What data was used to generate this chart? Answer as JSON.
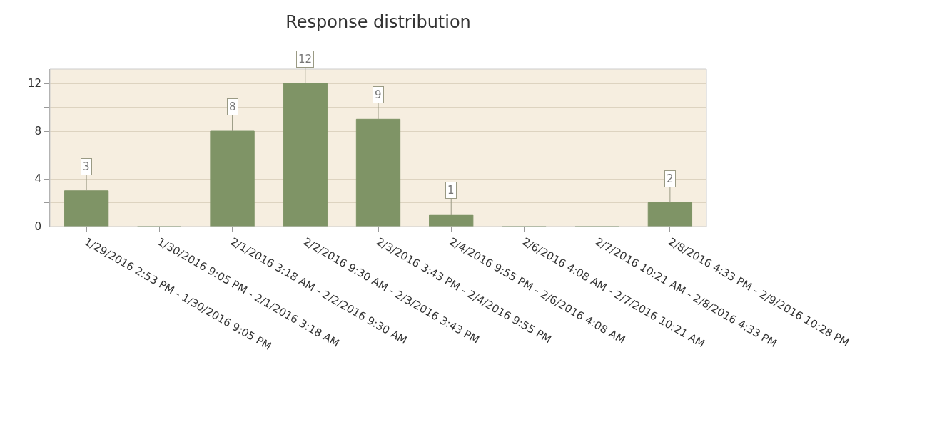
{
  "chart_data": {
    "type": "bar",
    "title": "Response distribution",
    "categories": [
      "1/29/2016 2:53 PM - 1/30/2016 9:05 PM",
      "1/30/2016 9:05 PM - 2/1/2016 3:18 AM",
      "2/1/2016 3:18 AM - 2/2/2016 9:30 AM",
      "2/2/2016 9:30 AM - 2/3/2016 3:43 PM",
      "2/3/2016 3:43 PM - 2/4/2016 9:55 PM",
      "2/4/2016 9:55 PM - 2/6/2016 4:08 AM",
      "2/6/2016 4:08 AM - 2/7/2016 10:21 AM",
      "2/7/2016 10:21 AM - 2/8/2016 4:33 PM",
      "2/8/2016 4:33 PM - 2/9/2016 10:28 PM"
    ],
    "values": [
      3,
      0,
      8,
      12,
      9,
      1,
      0,
      0,
      2
    ],
    "value_labels": [
      "3",
      null,
      "8",
      "12",
      "9",
      "1",
      null,
      null,
      "2"
    ],
    "color": "#7f9466",
    "ylim": [
      0,
      13.2
    ],
    "yticks": [
      0,
      {
        "value": 2,
        "label": null
      },
      4,
      {
        "value": 6,
        "label": null
      },
      8,
      {
        "value": 10,
        "label": null
      },
      12
    ],
    "grid": "y"
  }
}
